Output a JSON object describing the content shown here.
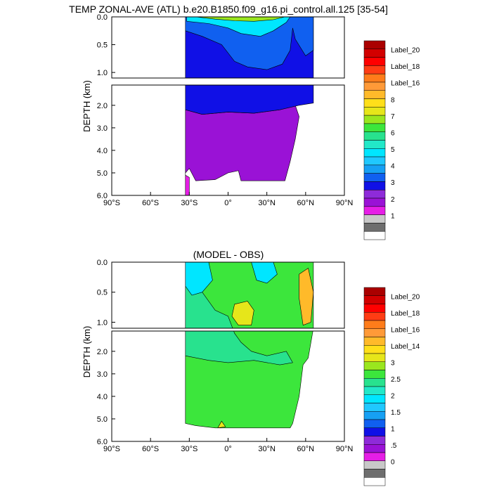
{
  "colors": {
    "colorbar": [
      "#ffffff",
      "#6e6e6e",
      "#c8c8c8",
      "#e61ee6",
      "#9a12d6",
      "#8e2bd9",
      "#1010e6",
      "#1060f0",
      "#16a0f4",
      "#20c8ff",
      "#00e6ff",
      "#22e8c8",
      "#28e28e",
      "#3ce63c",
      "#9ae61e",
      "#e6e61a",
      "#ffdf1a",
      "#ffba2a",
      "#ff9a38",
      "#ff7c1a",
      "#ff3c14",
      "#ff0000",
      "#d20000",
      "#aa0000"
    ],
    "plot_fill": "#ffffff",
    "frame": "#000000"
  },
  "chart_data": [
    {
      "type": "heatmap",
      "title": "TEMP ZONAL-AVE (ATL) b.e20.B1850.f09_g16.pi_control.all.125 [35-54]",
      "ylabel": "DEPTH (km)",
      "x_ticks": [
        "90°S",
        "60°S",
        "30°S",
        "0°",
        "30°N",
        "60°N",
        "90°N"
      ],
      "y_ticks_upper": [
        "0.0",
        "0.5",
        "1.0"
      ],
      "y_ticks_lower": [
        "2.0",
        "3.0",
        "4.0",
        "5.0",
        "6.0"
      ],
      "xlim": [
        -90,
        90
      ],
      "ylim_upper": [
        0,
        1.1
      ],
      "ylim_lower": [
        1.1,
        6.0
      ],
      "colorbar_labels": [
        "Label_20",
        "Label_18",
        "Label_16",
        "8",
        "7",
        "6",
        "5",
        "4",
        "3",
        "2",
        "1"
      ],
      "regions": [
        {
          "name": "deep",
          "level": 4,
          "pts": [
            [
              -33,
              6.0
            ],
            [
              -33,
              2.2
            ],
            [
              -20,
              2.4
            ],
            [
              0,
              2.3
            ],
            [
              20,
              2.35
            ],
            [
              40,
              2.2
            ],
            [
              52,
              2.0
            ],
            [
              55,
              2.5
            ],
            [
              52,
              3.5
            ],
            [
              48,
              4.5
            ],
            [
              44,
              5.35
            ],
            [
              10,
              5.35
            ],
            [
              8,
              4.9
            ],
            [
              0,
              5.0
            ],
            [
              -10,
              5.3
            ],
            [
              -25,
              5.35
            ],
            [
              -30,
              4.8
            ],
            [
              -33,
              5.0
            ]
          ]
        },
        {
          "name": "bottom",
          "level": 3,
          "pts": [
            [
              -33,
              6.0
            ],
            [
              -33,
              5.1
            ],
            [
              -30,
              5.2
            ],
            [
              -30,
              6.0
            ]
          ]
        },
        {
          "name": "mid",
          "level": 6,
          "pts": [
            [
              -33,
              0.6
            ],
            [
              -33,
              2.2
            ],
            [
              -20,
              2.4
            ],
            [
              0,
              2.3
            ],
            [
              20,
              2.35
            ],
            [
              40,
              2.2
            ],
            [
              55,
              2.0
            ],
            [
              66,
              1.9
            ],
            [
              66,
              0.0
            ],
            [
              -33,
              0.0
            ]
          ]
        },
        {
          "name": "upper",
          "level": 7,
          "pts": [
            [
              -33,
              0.25
            ],
            [
              -20,
              0.35
            ],
            [
              -5,
              0.5
            ],
            [
              5,
              0.8
            ],
            [
              15,
              0.9
            ],
            [
              30,
              0.95
            ],
            [
              42,
              0.85
            ],
            [
              48,
              0.6
            ],
            [
              50,
              0.2
            ],
            [
              52,
              0.4
            ],
            [
              60,
              0.7
            ],
            [
              66,
              0.6
            ],
            [
              66,
              0.0
            ],
            [
              -33,
              0.0
            ]
          ]
        },
        {
          "name": "warm",
          "level": 10,
          "pts": [
            [
              -32,
              0.08
            ],
            [
              -15,
              0.12
            ],
            [
              0,
              0.2
            ],
            [
              10,
              0.3
            ],
            [
              25,
              0.35
            ],
            [
              35,
              0.25
            ],
            [
              45,
              0.1
            ],
            [
              48,
              0.0
            ],
            [
              -32,
              0.0
            ]
          ]
        },
        {
          "name": "surface",
          "level": 14,
          "pts": [
            [
              -25,
              0.0
            ],
            [
              -10,
              0.04
            ],
            [
              5,
              0.07
            ],
            [
              20,
              0.08
            ],
            [
              35,
              0.05
            ],
            [
              44,
              0.0
            ]
          ]
        }
      ]
    },
    {
      "type": "heatmap",
      "title": "(MODEL - OBS)",
      "ylabel": "DEPTH (km)",
      "x_ticks": [
        "90°S",
        "60°S",
        "30°S",
        "0°",
        "30°N",
        "60°N",
        "90°N"
      ],
      "y_ticks_upper": [
        "0.0",
        "0.5",
        "1.0"
      ],
      "y_ticks_lower": [
        "2.0",
        "3.0",
        "4.0",
        "5.0",
        "6.0"
      ],
      "xlim": [
        -90,
        90
      ],
      "ylim_upper": [
        0,
        1.1
      ],
      "ylim_lower": [
        1.1,
        6.0
      ],
      "colorbar_labels": [
        "Label_20",
        "Label_18",
        "Label_16",
        "Label_14",
        "3",
        "2.5",
        "2",
        "1.5",
        "1",
        ".5",
        "0"
      ],
      "regions": [
        {
          "name": "body",
          "level": 13,
          "pts": [
            [
              -33,
              0.0
            ],
            [
              66,
              0.0
            ],
            [
              66,
              1.1
            ],
            [
              62,
              2.3
            ],
            [
              58,
              2.6
            ],
            [
              55,
              4.0
            ],
            [
              50,
              5.2
            ],
            [
              48,
              5.4
            ],
            [
              -10,
              5.4
            ],
            [
              -25,
              5.3
            ],
            [
              -33,
              5.2
            ]
          ]
        },
        {
          "name": "band",
          "level": 12,
          "pts": [
            [
              -33,
              0.3
            ],
            [
              -20,
              0.5
            ],
            [
              -10,
              0.8
            ],
            [
              0,
              0.9
            ],
            [
              5,
              1.2
            ],
            [
              10,
              1.6
            ],
            [
              18,
              2.0
            ],
            [
              30,
              2.2
            ],
            [
              45,
              2.0
            ],
            [
              50,
              2.5
            ],
            [
              40,
              2.6
            ],
            [
              20,
              2.4
            ],
            [
              0,
              2.5
            ],
            [
              -15,
              2.4
            ],
            [
              -33,
              2.2
            ]
          ]
        },
        {
          "name": "cyan",
          "level": 10,
          "pts": [
            [
              -33,
              0.0
            ],
            [
              -15,
              0.0
            ],
            [
              -12,
              0.3
            ],
            [
              -20,
              0.5
            ],
            [
              -28,
              0.55
            ],
            [
              -33,
              0.4
            ]
          ]
        },
        {
          "name": "cyan2",
          "level": 10,
          "pts": [
            [
              18,
              0.0
            ],
            [
              35,
              0.0
            ],
            [
              38,
              0.2
            ],
            [
              30,
              0.35
            ],
            [
              22,
              0.3
            ]
          ]
        },
        {
          "name": "yellow",
          "level": 15,
          "pts": [
            [
              5,
              0.7
            ],
            [
              15,
              0.65
            ],
            [
              20,
              0.8
            ],
            [
              18,
              1.05
            ],
            [
              8,
              1.05
            ],
            [
              3,
              0.9
            ]
          ]
        },
        {
          "name": "orange",
          "level": 17,
          "pts": [
            [
              55,
              0.2
            ],
            [
              62,
              0.1
            ],
            [
              66,
              0.5
            ],
            [
              64,
              1.0
            ],
            [
              58,
              1.05
            ],
            [
              55,
              0.6
            ]
          ]
        },
        {
          "name": "foot",
          "level": 15,
          "pts": [
            [
              -5,
              5.1
            ],
            [
              -2,
              5.35
            ],
            [
              -8,
              5.4
            ]
          ]
        }
      ]
    }
  ]
}
